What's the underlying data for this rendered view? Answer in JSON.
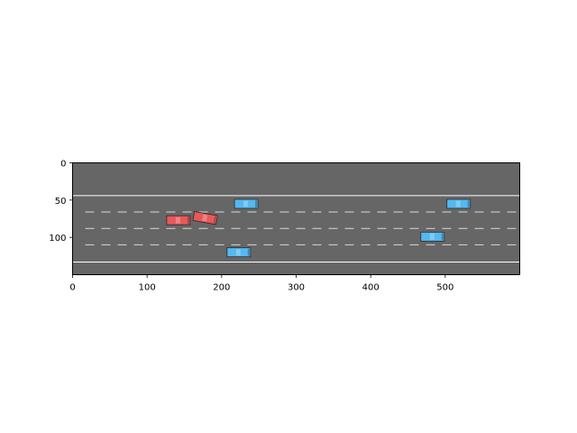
{
  "colors": {
    "road": "#666666",
    "solid_line": "#ffffff",
    "dashed_line": "#d9d9d9",
    "ego_car": "#e8585a",
    "other_car": "#55b8f0",
    "axis": "#000000"
  },
  "icons": {
    "ego_vehicle": "red-car-icon",
    "other_vehicle": "blue-car-icon"
  },
  "chart_data": {
    "type": "image",
    "xlim": [
      0,
      600
    ],
    "ylim": [
      150,
      0
    ],
    "x_ticks": [
      0,
      100,
      200,
      300,
      400,
      500
    ],
    "y_ticks": [
      0,
      50,
      100
    ],
    "grid": false,
    "road": {
      "solid_lines_y": [
        44,
        133
      ],
      "dashed_lines_y": [
        66,
        88,
        110
      ]
    },
    "vehicles": [
      {
        "role": "ego",
        "x": 142,
        "y": 77,
        "angle": 0
      },
      {
        "role": "ego",
        "x": 178,
        "y": 74,
        "angle": 10
      },
      {
        "role": "other",
        "x": 233,
        "y": 55,
        "angle": 0
      },
      {
        "role": "other",
        "x": 223,
        "y": 120,
        "angle": 0
      },
      {
        "role": "other",
        "x": 483,
        "y": 99,
        "angle": 0
      },
      {
        "role": "other",
        "x": 518,
        "y": 55,
        "angle": 0
      }
    ]
  }
}
